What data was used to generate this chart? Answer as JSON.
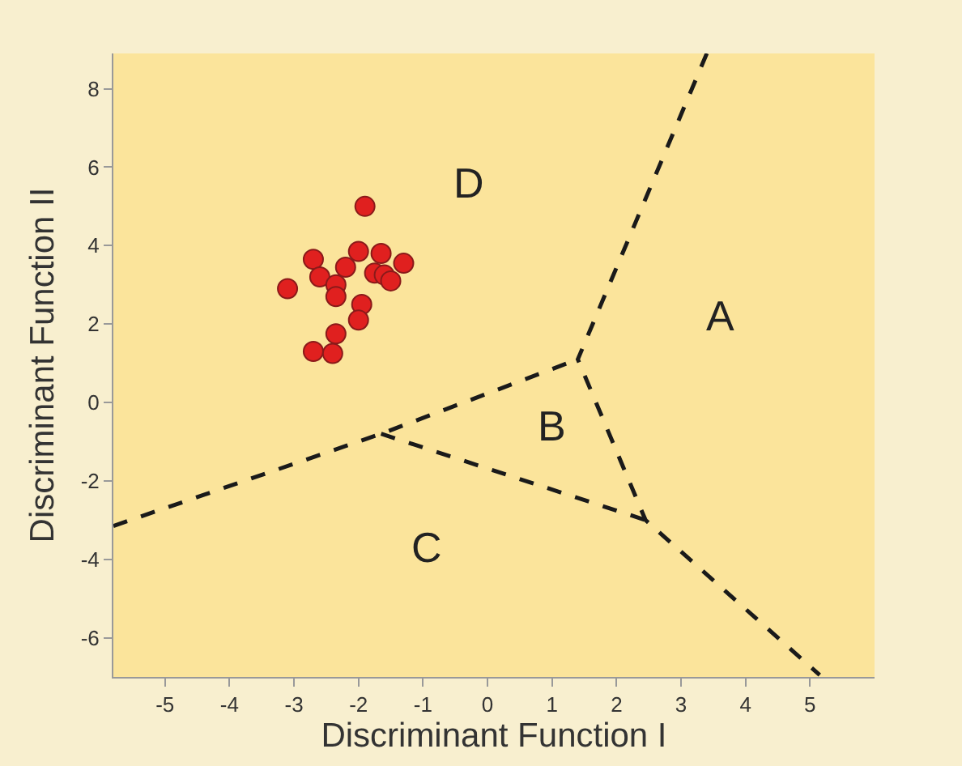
{
  "chart_data": {
    "type": "scatter",
    "xlabel": "Discriminant Function I",
    "ylabel": "Discriminant Function II",
    "xlim": [
      -5.8,
      6.0
    ],
    "ylim": [
      -7.0,
      8.9
    ],
    "xticks": [
      -5,
      -4,
      -3,
      -2,
      -1,
      0,
      1,
      2,
      3,
      4,
      5
    ],
    "yticks": [
      -6,
      -4,
      -2,
      0,
      2,
      4,
      6,
      8
    ],
    "grid": false,
    "marker": "circle",
    "series": [
      {
        "color": "#e0201f",
        "x": [
          -1.9,
          -2.7,
          -2.0,
          -1.65,
          -1.3,
          -2.2,
          -2.6,
          -1.75,
          -1.6,
          -1.5,
          -3.1,
          -2.35,
          -2.35,
          -1.95,
          -2.0,
          -2.35,
          -2.7,
          -2.4
        ],
        "values": [
          5.0,
          3.65,
          3.85,
          3.8,
          3.55,
          3.45,
          3.2,
          3.3,
          3.25,
          3.1,
          2.9,
          3.0,
          2.7,
          2.5,
          2.1,
          1.75,
          1.3,
          1.25
        ]
      },
      {
        "type": "line",
        "color": "#1a1a1a",
        "line_style": "dashed",
        "marker": "none",
        "x": [
          3.4,
          1.4,
          2.45,
          5.15
        ],
        "values": [
          8.9,
          1.1,
          -3.0,
          -6.95
        ]
      },
      {
        "type": "line",
        "color": "#1a1a1a",
        "line_style": "dashed",
        "marker": "none",
        "x": [
          -5.8,
          -1.65,
          1.4
        ],
        "values": [
          -3.15,
          -0.8,
          1.1
        ]
      },
      {
        "type": "line",
        "color": "#1a1a1a",
        "line_style": "dashed",
        "marker": "none",
        "x": [
          -1.65,
          2.45
        ],
        "values": [
          -0.8,
          -3.0
        ]
      }
    ],
    "annotations": [
      "D",
      "A",
      "B",
      "C"
    ]
  }
}
